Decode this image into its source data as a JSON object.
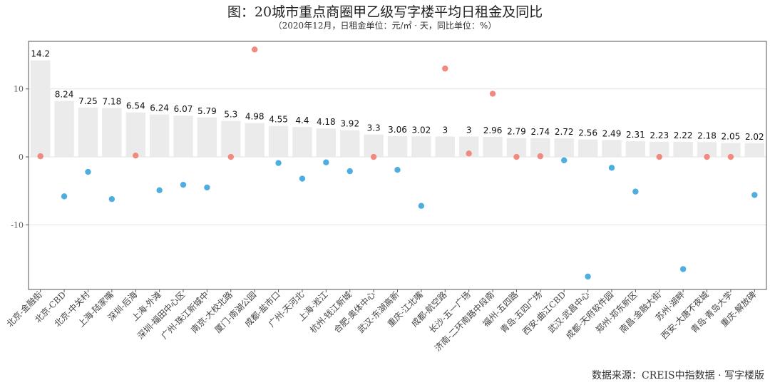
{
  "chart_data": {
    "type": "bar",
    "title": "图：20城市重点商圈甲乙级写字楼平均日租金及同比",
    "subtitle": "（2020年12月，日租金单位：元/㎡ · 天，同比单位：%）",
    "source": "数据来源：CREIS中指数据 · 写字楼版",
    "categories": [
      "北京-金融街",
      "北京-CBD",
      "北京-中关村",
      "上海-陆家嘴",
      "深圳-后海",
      "上海-外滩",
      "深圳-福田中心区",
      "广州-珠江新城中",
      "南京-大校北路",
      "厦门-南湖公园",
      "成都-盐市口",
      "广州-天河北",
      "上海-淞江",
      "杭州-钱江新城",
      "合肥-奥体中心",
      "武汉-东湖高新",
      "重庆-江北嘴",
      "成都-航空路",
      "长沙-五一广场",
      "济南-二环南路中段南",
      "福州-五四路",
      "青岛-五四广场",
      "西安-曲江CBD",
      "武汉-武昌中心",
      "成都-天府软件园",
      "郑州-郑东新区",
      "南昌-金融大街",
      "苏州-湖畔",
      "西安-大唐不夜城",
      "青岛-青岛大学",
      "重庆-解放碑"
    ],
    "values": [
      14.2,
      8.24,
      7.25,
      7.18,
      6.54,
      6.24,
      6.07,
      5.79,
      5.3,
      4.98,
      4.55,
      4.4,
      4.18,
      3.92,
      3.3,
      3.06,
      3.02,
      3,
      3,
      2.96,
      2.79,
      2.74,
      2.72,
      2.56,
      2.49,
      2.31,
      2.23,
      2.22,
      2.18,
      2.05,
      2.02
    ],
    "value_labels": [
      "14.2",
      "8.24",
      "7.25",
      "7.18",
      "6.54",
      "6.24",
      "6.07",
      "5.79",
      "5.3",
      "4.98",
      "4.55",
      "4.4",
      "4.18",
      "3.92",
      "3.3",
      "3.06",
      "3.02",
      "3",
      "3",
      "2.96",
      "2.79",
      "2.74",
      "2.72",
      "2.56",
      "2.49",
      "2.31",
      "2.23",
      "2.22",
      "2.18",
      "2.05",
      "2.02"
    ],
    "yoy": [
      0.1,
      -5.8,
      -2.2,
      -6.2,
      0.2,
      -4.9,
      -4.1,
      -4.5,
      0.0,
      15.8,
      -0.9,
      -3.2,
      -0.8,
      -2.1,
      0.0,
      -1.9,
      -7.2,
      13.0,
      0.5,
      9.3,
      0.0,
      0.1,
      -0.5,
      -17.6,
      -1.6,
      -5.1,
      0.0,
      -16.5,
      0.0,
      0.0,
      -5.6
    ],
    "ylim": [
      -19.5,
      17
    ],
    "yticks": [
      -10,
      0,
      10
    ],
    "ytick_labels": [
      "-10",
      "0",
      "10"
    ],
    "grid": true,
    "colors": {
      "bar": "#ebebeb",
      "yoy_positive": "#f08a7e",
      "yoy_negative": "#4eaee0",
      "grid": "#e2e2e2",
      "panel_border": "#555555"
    }
  }
}
